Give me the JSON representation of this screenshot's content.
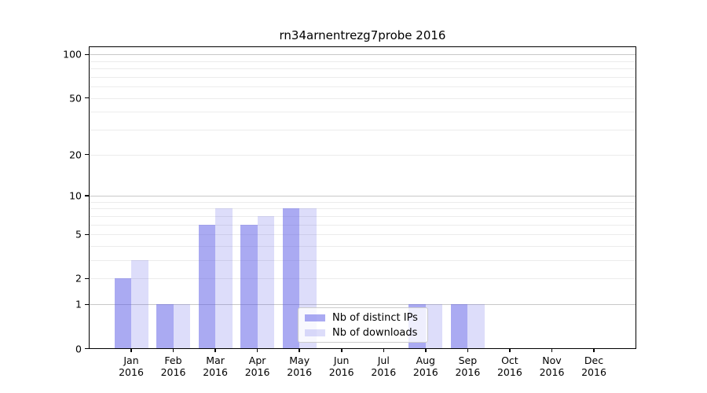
{
  "title": "rn34arnentrezg7probe 2016",
  "chart_data": {
    "type": "bar",
    "title": "rn34arnentrezg7probe 2016",
    "categories": [
      "Jan",
      "Feb",
      "Mar",
      "Apr",
      "May",
      "Jun",
      "Jul",
      "Aug",
      "Sep",
      "Oct",
      "Nov",
      "Dec"
    ],
    "year_label": "2016",
    "series": [
      {
        "name": "Nb of distinct IPs",
        "color": "rgba(85,85,230,0.5)",
        "flat_color": "#a9a9f3",
        "values": [
          2,
          1,
          6,
          6,
          8,
          0,
          0,
          1,
          1,
          0,
          0,
          0
        ]
      },
      {
        "name": "Nb of downloads",
        "color": "rgba(85,85,230,0.2)",
        "flat_color": "#dcdcf9",
        "values": [
          3,
          1,
          8,
          7,
          8,
          0,
          0,
          1,
          1,
          0,
          0,
          0
        ]
      }
    ],
    "y_scale": "log10(1+value)",
    "y_ticks": [
      0,
      1,
      2,
      5,
      10,
      20,
      50,
      100
    ],
    "y_major_gridlines": [
      1,
      10,
      100
    ],
    "y_minor_gridlines": [
      2,
      3,
      4,
      5,
      6,
      7,
      8,
      9,
      20,
      30,
      40,
      50,
      60,
      70,
      80,
      90
    ],
    "ylim": [
      0,
      114
    ],
    "xlabel": "",
    "ylabel": "",
    "grid": "horizontal",
    "legend_position": "lower center"
  },
  "legend": {
    "items": [
      {
        "label": "Nb of distinct IPs",
        "color": "rgba(85,85,230,0.5)"
      },
      {
        "label": "Nb of downloads",
        "color": "rgba(85,85,230,0.2)"
      }
    ]
  },
  "colors": {
    "background": "#ffffff",
    "bar_base": "#5555e6",
    "major_grid": "#c8c8c8",
    "minor_grid": "#ececec",
    "axis": "#000000",
    "legend_border": "#cccccc"
  }
}
